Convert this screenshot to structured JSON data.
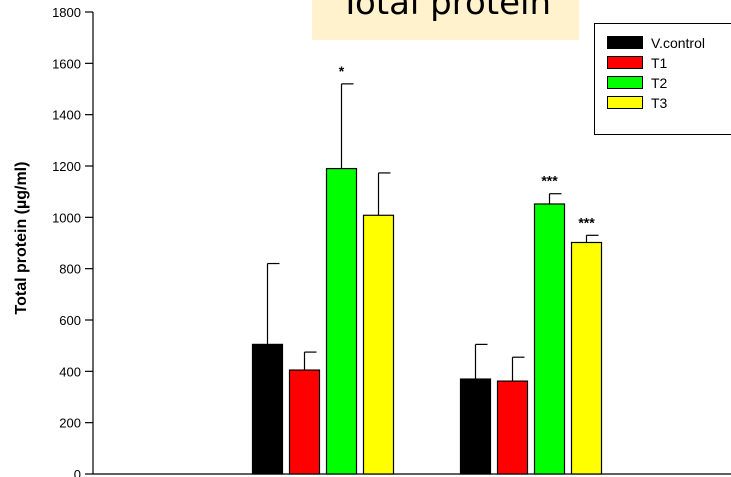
{
  "chart_data": {
    "type": "bar",
    "title": "Total protein",
    "xlabel": "",
    "ylabel": "Total protein (µg/ml)",
    "ylim": [
      0,
      1800
    ],
    "yticks": [
      0,
      200,
      400,
      600,
      800,
      1000,
      1200,
      1400,
      1600,
      1800
    ],
    "categories": [
      "",
      ""
    ],
    "legend_position": "top-right",
    "series": [
      {
        "name": "V.control",
        "color": "#000000",
        "values": [
          505,
          370
        ],
        "errors": [
          315,
          135
        ],
        "annotations": [
          "",
          ""
        ]
      },
      {
        "name": "T1",
        "color": "#FF0000",
        "values": [
          405,
          362
        ],
        "errors": [
          70,
          93
        ],
        "annotations": [
          "",
          ""
        ]
      },
      {
        "name": "T2",
        "color": "#00FF00",
        "values": [
          1190,
          1052
        ],
        "errors": [
          330,
          40
        ],
        "annotations": [
          "*",
          "***"
        ]
      },
      {
        "name": "T3",
        "color": "#FFFF00",
        "values": [
          1008,
          902
        ],
        "errors": [
          165,
          28
        ],
        "annotations": [
          "",
          "***"
        ]
      }
    ]
  }
}
